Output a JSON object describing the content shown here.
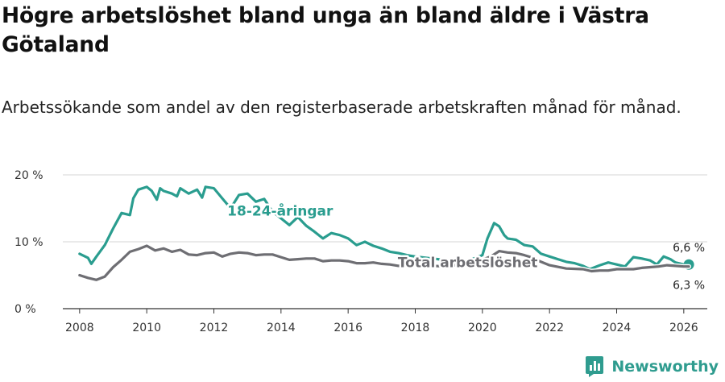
{
  "title": "Högre arbetslöshet bland unga än bland äldre i Västra Götaland",
  "subtitle": "Arbetssökande som andel av den registerbaserade arbetskraften månad för månad.",
  "brand": {
    "name": "Newsworthy",
    "icon": "newsworthy-logo-icon",
    "color": "#2f9c8f"
  },
  "chart_data": {
    "type": "line",
    "title": "Högre arbetslöshet bland unga än bland äldre i Västra Götaland",
    "xlabel": "",
    "ylabel": "",
    "xlim": [
      2007.5,
      2026.7
    ],
    "ylim": [
      0,
      20
    ],
    "grid": true,
    "x_ticks": [
      2008,
      2010,
      2012,
      2014,
      2016,
      2018,
      2020,
      2022,
      2024,
      2026
    ],
    "y_ticks": [
      {
        "value": 0,
        "label": "0 %"
      },
      {
        "value": 10,
        "label": "10 %"
      },
      {
        "value": 20,
        "label": "20 %"
      }
    ],
    "series": [
      {
        "name": "18-24-åringar",
        "color": "#2a9d8f",
        "x": [
          2008.0,
          2008.25,
          2008.35,
          2008.5,
          2008.75,
          2009.0,
          2009.25,
          2009.5,
          2009.6,
          2009.75,
          2010.0,
          2010.15,
          2010.3,
          2010.4,
          2010.5,
          2010.75,
          2010.9,
          2011.0,
          2011.25,
          2011.5,
          2011.65,
          2011.75,
          2012.0,
          2012.25,
          2012.5,
          2012.75,
          2013.0,
          2013.25,
          2013.5,
          2013.75,
          2014.0,
          2014.25,
          2014.5,
          2014.75,
          2015.0,
          2015.25,
          2015.5,
          2015.75,
          2016.0,
          2016.25,
          2016.5,
          2016.75,
          2017.0,
          2017.25,
          2017.5,
          2017.75,
          2018.0,
          2019.0,
          2019.5,
          2020.0,
          2020.15,
          2020.35,
          2020.5,
          2020.65,
          2020.75,
          2021.0,
          2021.25,
          2021.5,
          2021.75,
          2022.0,
          2022.25,
          2022.5,
          2022.75,
          2023.0,
          2023.2,
          2023.5,
          2023.75,
          2024.0,
          2024.25,
          2024.5,
          2024.75,
          2025.0,
          2025.2,
          2025.4,
          2025.6,
          2025.75,
          2026.0,
          2026.15
        ],
        "values": [
          8.2,
          7.6,
          6.7,
          7.8,
          9.5,
          12.0,
          14.3,
          14.0,
          16.5,
          17.8,
          18.2,
          17.6,
          16.3,
          18.0,
          17.6,
          17.2,
          16.8,
          18.0,
          17.2,
          17.8,
          16.6,
          18.2,
          18.0,
          16.5,
          15.0,
          17.0,
          17.2,
          16.0,
          16.4,
          14.5,
          13.5,
          12.5,
          13.7,
          12.4,
          11.5,
          10.5,
          11.3,
          11.0,
          10.5,
          9.5,
          10.0,
          9.4,
          9.0,
          8.5,
          8.3,
          8.0,
          7.8,
          7.2,
          7.0,
          8.0,
          10.5,
          12.8,
          12.3,
          11.0,
          10.5,
          10.3,
          9.5,
          9.3,
          8.2,
          7.8,
          7.4,
          7.0,
          6.8,
          6.4,
          5.9,
          6.5,
          6.9,
          6.6,
          6.3,
          7.7,
          7.5,
          7.2,
          6.6,
          7.8,
          7.4,
          6.9,
          6.6,
          6.6
        ]
      },
      {
        "name": "Total arbetslöshet",
        "color": "#6e6e73",
        "x": [
          2008.0,
          2008.25,
          2008.5,
          2008.75,
          2009.0,
          2009.25,
          2009.5,
          2009.75,
          2010.0,
          2010.25,
          2010.5,
          2010.75,
          2011.0,
          2011.25,
          2011.5,
          2011.75,
          2012.0,
          2012.25,
          2012.5,
          2012.75,
          2013.0,
          2013.25,
          2013.5,
          2013.75,
          2014.0,
          2014.25,
          2014.5,
          2014.75,
          2015.0,
          2015.25,
          2015.5,
          2015.75,
          2016.0,
          2016.25,
          2016.5,
          2016.75,
          2017.0,
          2017.25,
          2017.5,
          2018.0,
          2019.0,
          2020.0,
          2020.25,
          2020.5,
          2020.75,
          2021.0,
          2021.25,
          2021.5,
          2021.75,
          2022.0,
          2022.5,
          2023.0,
          2023.25,
          2023.5,
          2023.75,
          2024.0,
          2024.25,
          2024.5,
          2024.75,
          2025.0,
          2025.25,
          2025.5,
          2025.75,
          2026.0,
          2026.15
        ],
        "values": [
          5.0,
          4.6,
          4.3,
          4.8,
          6.2,
          7.3,
          8.5,
          8.9,
          9.4,
          8.7,
          9.0,
          8.5,
          8.8,
          8.1,
          8.0,
          8.3,
          8.4,
          7.8,
          8.2,
          8.4,
          8.3,
          8.0,
          8.1,
          8.1,
          7.7,
          7.3,
          7.4,
          7.5,
          7.5,
          7.1,
          7.2,
          7.2,
          7.1,
          6.8,
          6.8,
          6.9,
          6.7,
          6.6,
          6.4,
          6.5,
          6.3,
          7.3,
          7.8,
          8.6,
          8.4,
          8.3,
          8.0,
          7.6,
          7.0,
          6.5,
          6.0,
          5.9,
          5.6,
          5.7,
          5.7,
          5.9,
          5.9,
          5.9,
          6.1,
          6.2,
          6.3,
          6.5,
          6.4,
          6.3,
          6.3
        ]
      }
    ],
    "annotations": [
      {
        "text": "18-24-åringar",
        "series": "18-24-åringar"
      },
      {
        "text": "Total arbetslöshet",
        "series": "Total arbetslöshet"
      },
      {
        "text": "6,6 %",
        "series": "18-24-åringar",
        "position": "last point, above"
      },
      {
        "text": "6,3 %",
        "series": "Total arbetslöshet",
        "position": "last point, below"
      }
    ]
  }
}
